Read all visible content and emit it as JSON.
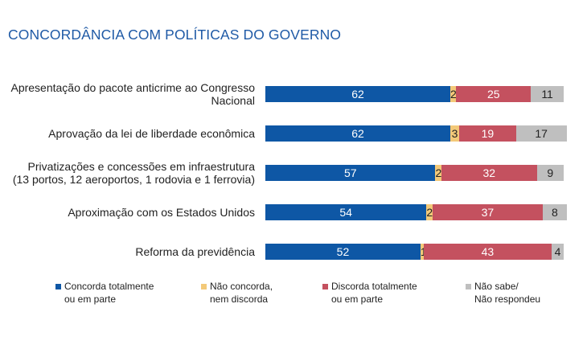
{
  "title": "CONCORDÂNCIA COM POLÍTICAS DO GOVERNO",
  "chart_data": {
    "type": "bar",
    "orientation": "horizontal",
    "stacked": true,
    "xlim": [
      0,
      100
    ],
    "grid": false,
    "legend_position": "bottom",
    "categories": [
      [
        "Apresentação do pacote anticrime ao Congresso",
        "Nacional"
      ],
      [
        "Aprovação da lei de liberdade econômica"
      ],
      [
        "Privatizações e concessões em infraestrutura",
        "(13 portos, 12 aeroportos, 1 rodovia e 1 ferrovia)"
      ],
      [
        "Aproximação com os Estados Unidos"
      ],
      [
        "Reforma da previdência"
      ]
    ],
    "series": [
      {
        "name": [
          "Concorda totalmente",
          "ou em parte"
        ],
        "color": "#0e57a5",
        "label_color": "#ffffff",
        "values": [
          62,
          62,
          57,
          54,
          52
        ]
      },
      {
        "name": [
          "Não concorda,",
          "nem discorda"
        ],
        "color": "#f3c979",
        "label_color": "#222222",
        "values": [
          2,
          3,
          2,
          2,
          1
        ]
      },
      {
        "name": [
          "Discorda totalmente",
          "ou em parte"
        ],
        "color": "#c4515f",
        "label_color": "#ffffff",
        "values": [
          25,
          19,
          32,
          37,
          43
        ]
      },
      {
        "name": [
          "Não sabe/",
          "Não respondeu"
        ],
        "color": "#bfbfbf",
        "label_color": "#222222",
        "values": [
          11,
          17,
          9,
          8,
          4
        ]
      }
    ]
  }
}
